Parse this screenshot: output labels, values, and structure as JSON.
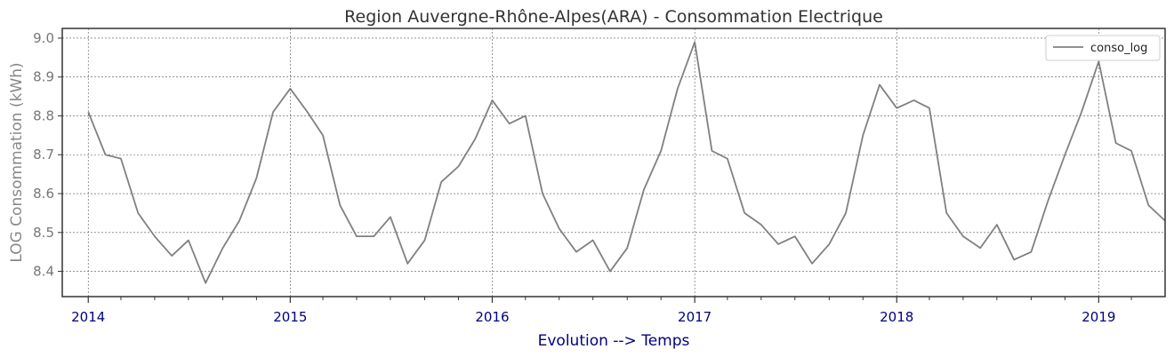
{
  "chart_data": {
    "type": "line",
    "title": "Region Auvergne-Rhône-Alpes(ARA) - Consommation Electrique",
    "xlabel": "Evolution --> Temps",
    "ylabel": "LOG Consommation (kWh)",
    "xlim": [
      "2013-11-15",
      "2019-05-01"
    ],
    "ylim": [
      8.335,
      9.025
    ],
    "yticks": [
      8.4,
      8.5,
      8.6,
      8.7,
      8.8,
      8.9,
      9.0
    ],
    "ytick_labels": [
      "8.4",
      "8.5",
      "8.6",
      "8.7",
      "8.8",
      "8.9",
      "9.0"
    ],
    "xticks": [
      "2014-01-01",
      "2015-01-01",
      "2016-01-01",
      "2017-01-01",
      "2018-01-01",
      "2019-01-01"
    ],
    "xtick_labels": [
      "2014",
      "2015",
      "2016",
      "2017",
      "2018",
      "2019"
    ],
    "grid": true,
    "legend_position": "top-right",
    "series": [
      {
        "name": "conso_log",
        "color": "#808080",
        "x": [
          "2014-01",
          "2014-02",
          "2014-03",
          "2014-04",
          "2014-05",
          "2014-06",
          "2014-07",
          "2014-08",
          "2014-09",
          "2014-10",
          "2014-11",
          "2014-12",
          "2015-01",
          "2015-02",
          "2015-03",
          "2015-04",
          "2015-05",
          "2015-06",
          "2015-07",
          "2015-08",
          "2015-09",
          "2015-10",
          "2015-11",
          "2015-12",
          "2016-01",
          "2016-02",
          "2016-03",
          "2016-04",
          "2016-05",
          "2016-06",
          "2016-07",
          "2016-08",
          "2016-09",
          "2016-10",
          "2016-11",
          "2016-12",
          "2017-01",
          "2017-02",
          "2017-03",
          "2017-04",
          "2017-05",
          "2017-06",
          "2017-07",
          "2017-08",
          "2017-09",
          "2017-10",
          "2017-11",
          "2017-12",
          "2018-01",
          "2018-02",
          "2018-03",
          "2018-04",
          "2018-05",
          "2018-06",
          "2018-07",
          "2018-08",
          "2018-09",
          "2018-10",
          "2018-11",
          "2018-12",
          "2019-01",
          "2019-02",
          "2019-03",
          "2019-04",
          "2019-05"
        ],
        "values": [
          8.81,
          8.7,
          8.69,
          8.55,
          8.49,
          8.44,
          8.48,
          8.37,
          8.46,
          8.53,
          8.64,
          8.81,
          8.87,
          8.81,
          8.75,
          8.57,
          8.49,
          8.49,
          8.54,
          8.42,
          8.48,
          8.63,
          8.67,
          8.74,
          8.84,
          8.78,
          8.8,
          8.6,
          8.51,
          8.45,
          8.48,
          8.4,
          8.46,
          8.61,
          8.71,
          8.87,
          8.99,
          8.71,
          8.69,
          8.55,
          8.52,
          8.47,
          8.49,
          8.42,
          8.47,
          8.55,
          8.75,
          8.88,
          8.82,
          8.84,
          8.82,
          8.55,
          8.49,
          8.46,
          8.52,
          8.43,
          8.45,
          8.58,
          8.7,
          8.81,
          8.94,
          8.73,
          8.71,
          8.57,
          8.53
        ]
      }
    ]
  }
}
